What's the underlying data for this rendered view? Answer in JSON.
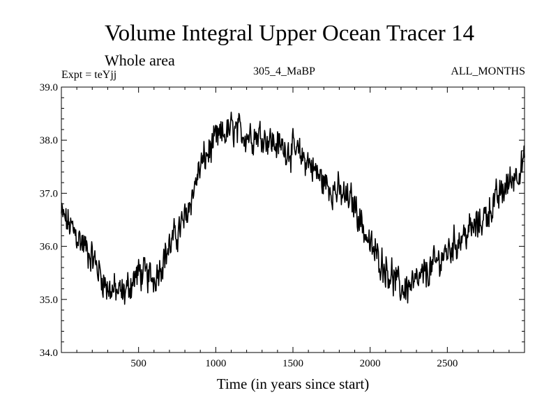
{
  "chart_data": {
    "type": "line",
    "title": "Volume Integral Upper Ocean Tracer 14",
    "subtitle": "Whole area",
    "experiment": "Expt = teYjj",
    "run_id": "305_4_MaBP",
    "months": "ALL_MONTHS",
    "xlabel": "Time (in years since start)",
    "ylabel": "",
    "xlim": [
      0,
      3000
    ],
    "ylim": [
      34.0,
      39.0
    ],
    "xticks": [
      500,
      1000,
      1500,
      2000,
      2500
    ],
    "xtick_labels": [
      "500",
      "1000",
      "1500",
      "2000",
      "2500"
    ],
    "yticks": [
      34.0,
      35.0,
      36.0,
      37.0,
      38.0,
      39.0
    ],
    "ytick_labels": [
      "34.0",
      "35.0",
      "36.0",
      "37.0",
      "38.0",
      "39.0"
    ],
    "grid": false,
    "series": [
      {
        "name": "tracer14",
        "trend_x": [
          0,
          100,
          200,
          300,
          400,
          500,
          600,
          700,
          800,
          900,
          1000,
          1100,
          1200,
          1300,
          1400,
          1500,
          1600,
          1700,
          1800,
          1900,
          2000,
          2100,
          2200,
          2300,
          2400,
          2500,
          2600,
          2700,
          2800,
          2900,
          3000
        ],
        "trend_y": [
          36.6,
          36.2,
          35.8,
          35.2,
          35.1,
          35.5,
          35.4,
          36.0,
          36.5,
          37.5,
          38.0,
          38.2,
          38.1,
          38.1,
          37.9,
          37.8,
          37.6,
          37.2,
          37.0,
          36.8,
          36.0,
          35.6,
          35.2,
          35.3,
          35.6,
          35.9,
          36.2,
          36.4,
          36.8,
          37.2,
          37.6
        ],
        "noise_amplitude": 0.35,
        "points": 900,
        "color": "#000000"
      }
    ]
  }
}
